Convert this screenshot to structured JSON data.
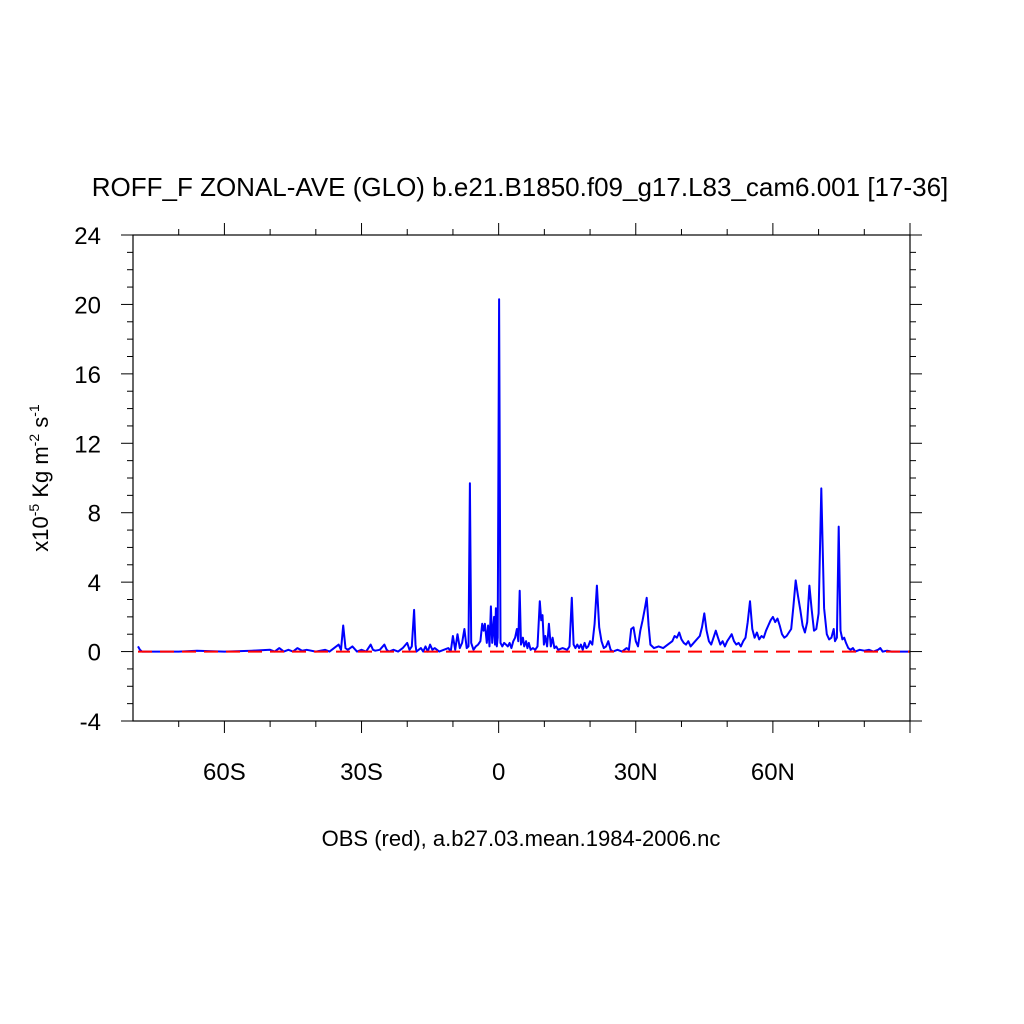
{
  "chart_data": {
    "type": "line",
    "title": "ROFF_F ZONAL-AVE (GLO) b.e21.B1850.f09_g17.L83_cam6.001 [17-36]",
    "xlabel": "OBS (red), a.b27.03.mean.1984-2006.nc",
    "ylabel": {
      "prefix": "x10",
      "exponent": "-5",
      "units_main": " Kg m",
      "units_exp1": "-2",
      "units_s": " s",
      "units_exp2": "-1"
    },
    "xlim": [
      -80,
      90
    ],
    "ylim": [
      -4,
      24
    ],
    "x_ticks": [
      {
        "value": -60,
        "label": "60S"
      },
      {
        "value": -30,
        "label": "30S"
      },
      {
        "value": 0,
        "label": "0"
      },
      {
        "value": 30,
        "label": "30N"
      },
      {
        "value": 60,
        "label": "60N"
      }
    ],
    "y_ticks": [
      {
        "value": -4,
        "label": "-4"
      },
      {
        "value": 0,
        "label": "0"
      },
      {
        "value": 4,
        "label": "4"
      },
      {
        "value": 8,
        "label": "8"
      },
      {
        "value": 12,
        "label": "12"
      },
      {
        "value": 16,
        "label": "16"
      },
      {
        "value": 20,
        "label": "20"
      },
      {
        "value": 24,
        "label": "24"
      }
    ],
    "series": [
      {
        "name": "b.e21.B1850.f09_g17.L83_cam6.001",
        "color": "#0000ff",
        "style": "solid",
        "points": [
          [
            -78.9,
            0.3
          ],
          [
            -78.5,
            0.1
          ],
          [
            -78,
            0.0
          ],
          [
            -70,
            0.0
          ],
          [
            -66,
            0.05
          ],
          [
            -60,
            0.0
          ],
          [
            -54,
            0.05
          ],
          [
            -50,
            0.1
          ],
          [
            -49,
            0.0
          ],
          [
            -48,
            0.2
          ],
          [
            -47,
            0.0
          ],
          [
            -46,
            0.1
          ],
          [
            -45,
            0.0
          ],
          [
            -44,
            0.2
          ],
          [
            -43,
            0.05
          ],
          [
            -42,
            0.1
          ],
          [
            -40,
            0.0
          ],
          [
            -38,
            0.1
          ],
          [
            -37,
            0.0
          ],
          [
            -36,
            0.2
          ],
          [
            -35,
            0.4
          ],
          [
            -34.5,
            0.1
          ],
          [
            -34,
            1.5
          ],
          [
            -33.5,
            0.2
          ],
          [
            -33,
            0.1
          ],
          [
            -32,
            0.3
          ],
          [
            -31,
            0.0
          ],
          [
            -30,
            0.1
          ],
          [
            -29,
            0.0
          ],
          [
            -28,
            0.4
          ],
          [
            -27.5,
            0.1
          ],
          [
            -27,
            0.05
          ],
          [
            -26,
            0.1
          ],
          [
            -25,
            0.4
          ],
          [
            -24.5,
            0.1
          ],
          [
            -24,
            0.0
          ],
          [
            -23,
            0.1
          ],
          [
            -22,
            0.0
          ],
          [
            -21,
            0.2
          ],
          [
            -20,
            0.5
          ],
          [
            -19.5,
            0.1
          ],
          [
            -19,
            0.3
          ],
          [
            -18.5,
            2.4
          ],
          [
            -18.2,
            0.4
          ],
          [
            -18,
            0.0
          ],
          [
            -17,
            0.2
          ],
          [
            -16.5,
            0.0
          ],
          [
            -16,
            0.3
          ],
          [
            -15.5,
            0.0
          ],
          [
            -15,
            0.4
          ],
          [
            -14.5,
            0.1
          ],
          [
            -14,
            0.2
          ],
          [
            -13,
            0.0
          ],
          [
            -12,
            0.1
          ],
          [
            -11,
            0.2
          ],
          [
            -10.5,
            0.0
          ],
          [
            -10,
            0.9
          ],
          [
            -9.5,
            0.1
          ],
          [
            -9,
            1.0
          ],
          [
            -8.5,
            0.2
          ],
          [
            -8,
            0.5
          ],
          [
            -7.5,
            1.3
          ],
          [
            -7,
            0.2
          ],
          [
            -6.6,
            0.3
          ],
          [
            -6.3,
            9.7
          ],
          [
            -6.0,
            0.5
          ],
          [
            -5.5,
            0.1
          ],
          [
            -5,
            0.3
          ],
          [
            -4.5,
            0.4
          ],
          [
            -4,
            0.6
          ],
          [
            -3.6,
            1.6
          ],
          [
            -3.3,
            1.2
          ],
          [
            -3,
            1.6
          ],
          [
            -2.6,
            0.5
          ],
          [
            -2.3,
            1.5
          ],
          [
            -2,
            0.3
          ],
          [
            -1.7,
            2.6
          ],
          [
            -1.4,
            0.5
          ],
          [
            -1,
            2.0
          ],
          [
            -0.8,
            0.4
          ],
          [
            -0.6,
            2.5
          ],
          [
            -0.4,
            0.3
          ],
          [
            -0.2,
            0.8
          ],
          [
            0.1,
            20.3
          ],
          [
            0.4,
            0.5
          ],
          [
            0.8,
            0.3
          ],
          [
            1.2,
            0.5
          ],
          [
            1.6,
            0.4
          ],
          [
            2,
            0.3
          ],
          [
            2.4,
            0.5
          ],
          [
            2.8,
            0.2
          ],
          [
            3.2,
            0.6
          ],
          [
            3.6,
            0.8
          ],
          [
            4.0,
            1.3
          ],
          [
            4.3,
            0.6
          ],
          [
            4.6,
            3.5
          ],
          [
            4.9,
            0.4
          ],
          [
            5.3,
            0.8
          ],
          [
            5.6,
            0.3
          ],
          [
            6,
            0.6
          ],
          [
            6.3,
            0.2
          ],
          [
            6.6,
            0.5
          ],
          [
            7,
            0.1
          ],
          [
            7.5,
            0.2
          ],
          [
            8,
            0.1
          ],
          [
            8.5,
            0.3
          ],
          [
            9,
            2.9
          ],
          [
            9.3,
            1.8
          ],
          [
            9.6,
            2.1
          ],
          [
            9.9,
            0.4
          ],
          [
            10.2,
            0.9
          ],
          [
            10.6,
            0.3
          ],
          [
            11,
            1.6
          ],
          [
            11.4,
            0.3
          ],
          [
            11.8,
            0.8
          ],
          [
            12.2,
            0.2
          ],
          [
            12.6,
            0.3
          ],
          [
            13,
            0.1
          ],
          [
            14,
            0.2
          ],
          [
            15,
            0.1
          ],
          [
            15.5,
            0.3
          ],
          [
            16,
            3.1
          ],
          [
            16.4,
            0.4
          ],
          [
            16.8,
            0.2
          ],
          [
            17.2,
            0.4
          ],
          [
            17.6,
            0.2
          ],
          [
            18,
            0.4
          ],
          [
            18.4,
            0.1
          ],
          [
            18.8,
            0.5
          ],
          [
            19.2,
            0.2
          ],
          [
            19.6,
            0.3
          ],
          [
            20,
            0.6
          ],
          [
            20.5,
            0.4
          ],
          [
            21,
            1.6
          ],
          [
            21.5,
            3.8
          ],
          [
            22,
            1.4
          ],
          [
            22.5,
            0.6
          ],
          [
            23,
            0.2
          ],
          [
            23.5,
            0.3
          ],
          [
            24,
            0.6
          ],
          [
            24.5,
            0.1
          ],
          [
            25,
            0.0
          ],
          [
            26,
            0.1
          ],
          [
            27,
            0.0
          ],
          [
            28,
            0.2
          ],
          [
            28.5,
            0.1
          ],
          [
            29,
            1.3
          ],
          [
            29.5,
            1.4
          ],
          [
            30,
            0.6
          ],
          [
            30.5,
            0.3
          ],
          [
            31,
            1.2
          ],
          [
            31.5,
            1.8
          ],
          [
            32,
            2.5
          ],
          [
            32.4,
            3.1
          ],
          [
            32.8,
            1.5
          ],
          [
            33.2,
            0.4
          ],
          [
            34,
            0.2
          ],
          [
            35,
            0.3
          ],
          [
            36,
            0.2
          ],
          [
            37,
            0.4
          ],
          [
            38,
            0.6
          ],
          [
            38.5,
            0.9
          ],
          [
            39,
            0.8
          ],
          [
            39.5,
            1.1
          ],
          [
            40,
            0.7
          ],
          [
            40.5,
            0.5
          ],
          [
            41,
            0.4
          ],
          [
            41.5,
            0.6
          ],
          [
            42,
            0.3
          ],
          [
            43,
            0.6
          ],
          [
            44,
            0.9
          ],
          [
            44.5,
            1.4
          ],
          [
            45,
            2.2
          ],
          [
            45.5,
            1.2
          ],
          [
            46,
            0.6
          ],
          [
            46.5,
            0.4
          ],
          [
            47,
            0.8
          ],
          [
            47.5,
            1.2
          ],
          [
            48,
            0.8
          ],
          [
            48.5,
            0.4
          ],
          [
            49,
            0.6
          ],
          [
            49.5,
            0.3
          ],
          [
            50,
            0.6
          ],
          [
            50.5,
            0.8
          ],
          [
            51,
            1.0
          ],
          [
            51.5,
            0.6
          ],
          [
            52,
            0.4
          ],
          [
            52.5,
            0.5
          ],
          [
            53,
            0.3
          ],
          [
            53.5,
            0.6
          ],
          [
            54,
            0.8
          ],
          [
            54.5,
            1.7
          ],
          [
            55,
            2.9
          ],
          [
            55.5,
            1.3
          ],
          [
            56,
            0.8
          ],
          [
            56.5,
            1.1
          ],
          [
            57,
            0.7
          ],
          [
            57.5,
            0.9
          ],
          [
            58,
            0.8
          ],
          [
            58.5,
            1.2
          ],
          [
            59,
            1.5
          ],
          [
            59.5,
            1.8
          ],
          [
            60,
            2.0
          ],
          [
            60.5,
            1.7
          ],
          [
            61,
            1.9
          ],
          [
            61.5,
            1.5
          ],
          [
            62,
            1.0
          ],
          [
            62.5,
            0.8
          ],
          [
            63,
            0.9
          ],
          [
            63.5,
            1.1
          ],
          [
            64,
            1.3
          ],
          [
            64.5,
            2.6
          ],
          [
            65,
            4.1
          ],
          [
            65.5,
            3.2
          ],
          [
            66,
            2.4
          ],
          [
            66.5,
            1.5
          ],
          [
            67,
            1.1
          ],
          [
            67.5,
            1.7
          ],
          [
            68,
            3.8
          ],
          [
            68.5,
            2.4
          ],
          [
            69,
            1.2
          ],
          [
            69.5,
            1.3
          ],
          [
            70,
            2.2
          ],
          [
            70.6,
            9.4
          ],
          [
            71.2,
            2.5
          ],
          [
            71.8,
            1.0
          ],
          [
            72.3,
            0.7
          ],
          [
            72.8,
            0.8
          ],
          [
            73.3,
            1.3
          ],
          [
            73.6,
            0.6
          ],
          [
            74,
            0.8
          ],
          [
            74.4,
            7.2
          ],
          [
            74.8,
            1.2
          ],
          [
            75.2,
            0.7
          ],
          [
            75.6,
            0.8
          ],
          [
            76,
            0.5
          ],
          [
            76.5,
            0.2
          ],
          [
            77,
            0.1
          ],
          [
            77.5,
            0.2
          ],
          [
            78,
            0.0
          ],
          [
            79,
            0.1
          ],
          [
            80,
            0.05
          ],
          [
            81,
            0.1
          ],
          [
            82,
            0.0
          ],
          [
            83,
            0.1
          ],
          [
            83.5,
            0.2
          ],
          [
            84,
            0.0
          ],
          [
            85,
            0.05
          ],
          [
            86,
            0.0
          ],
          [
            88,
            0.0
          ],
          [
            89.9,
            0.0
          ]
        ]
      },
      {
        "name": "OBS",
        "color": "#ff0000",
        "style": "dashed",
        "points": [
          [
            -78.9,
            0.0
          ],
          [
            89.9,
            0.0
          ]
        ]
      }
    ]
  }
}
